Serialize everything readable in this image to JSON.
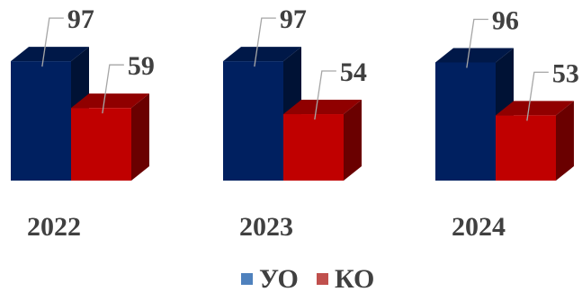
{
  "chart_data": {
    "type": "bar",
    "categories": [
      "2022",
      "2023",
      "2024"
    ],
    "series": [
      {
        "name": "УО",
        "values": [
          97,
          97,
          96
        ],
        "color": "#002060",
        "legend_color": "#4F81BD"
      },
      {
        "name": "КО",
        "values": [
          59,
          54,
          53
        ],
        "color": "#C00000",
        "legend_color": "#C0504D"
      }
    ],
    "title": "",
    "xlabel": "",
    "ylabel": "",
    "grid": false,
    "legend": "bottom",
    "style": "3d"
  }
}
